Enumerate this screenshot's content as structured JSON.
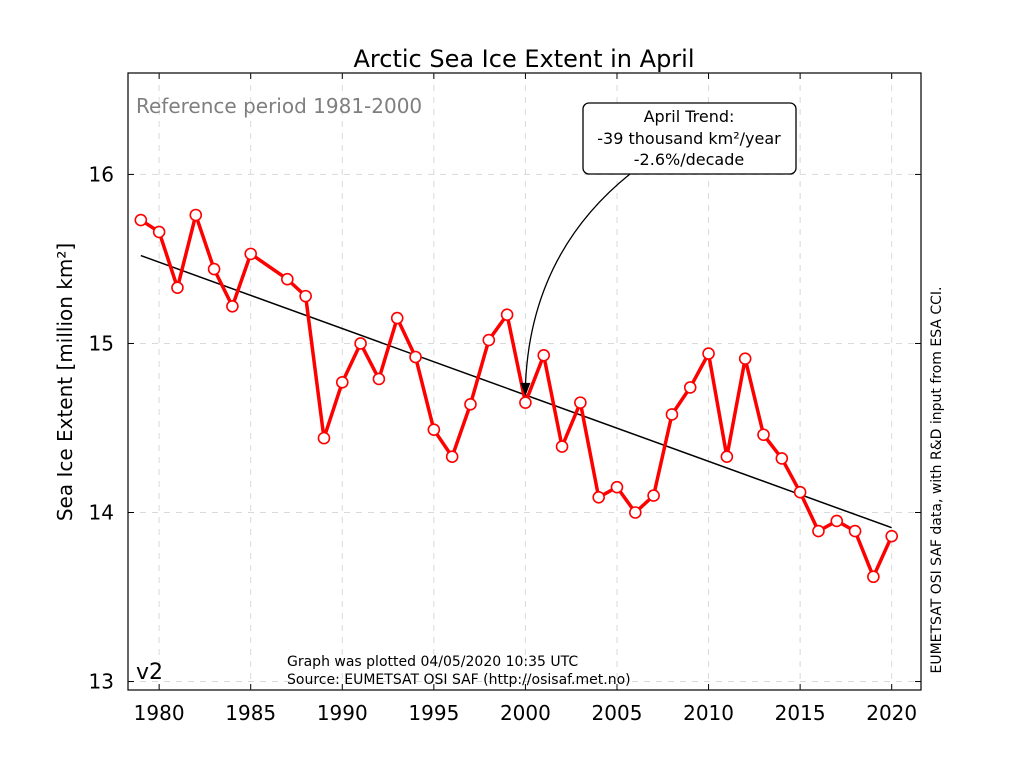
{
  "chart_data": {
    "type": "line",
    "title": "Arctic Sea Ice Extent in April",
    "ylabel": "Sea Ice Extent [million km²]",
    "xlabel": "",
    "xlim": [
      1978.3,
      2021.6
    ],
    "ylim": [
      12.95,
      16.6
    ],
    "xticks": [
      1980,
      1985,
      1990,
      1995,
      2000,
      2005,
      2010,
      2015,
      2020
    ],
    "yticks": [
      13,
      14,
      15,
      16
    ],
    "grid": true,
    "series": [
      {
        "color": "#ff0000",
        "x": [
          1979,
          1980,
          1981,
          1982,
          1983,
          1984,
          1985,
          1987,
          1988,
          1989,
          1990,
          1991,
          1992,
          1993,
          1994,
          1995,
          1996,
          1997,
          1998,
          1999,
          2000,
          2001,
          2002,
          2003,
          2004,
          2005,
          2006,
          2007,
          2008,
          2009,
          2010,
          2011,
          2012,
          2013,
          2014,
          2015,
          2016,
          2017,
          2018,
          2019,
          2020
        ],
        "y": [
          15.73,
          15.66,
          15.33,
          15.76,
          15.44,
          15.22,
          15.53,
          15.38,
          15.28,
          14.44,
          14.77,
          15.0,
          14.79,
          15.15,
          14.92,
          14.49,
          14.33,
          14.64,
          15.02,
          15.17,
          14.65,
          14.93,
          14.39,
          14.65,
          14.09,
          14.15,
          14.0,
          14.1,
          14.58,
          14.74,
          14.94,
          14.33,
          14.91,
          14.46,
          14.32,
          14.12,
          13.89,
          13.95,
          13.89,
          13.62,
          13.86
        ]
      }
    ],
    "trend": {
      "color": "#000000",
      "x": [
        1979,
        2020
      ],
      "y": [
        15.52,
        13.91
      ]
    },
    "annotation": {
      "lines": [
        "April Trend:",
        "-39 thousand km²/year",
        "-2.6%/decade"
      ],
      "arrow_target": {
        "x": 2000,
        "y": 14.69
      }
    },
    "top_left_note": "Reference period 1981-2000",
    "version_label": "v2",
    "footer_lines": [
      "Graph was plotted 04/05/2020 10:35 UTC",
      "Source: EUMETSAT OSI SAF (http://osisaf.met.no)"
    ],
    "side_note": "EUMETSAT OSI SAF data, with R&D input from ESA CCI."
  }
}
